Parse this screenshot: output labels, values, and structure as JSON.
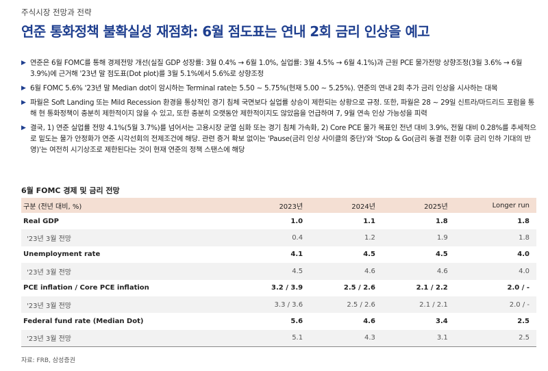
{
  "section_label": "주식시장 전망과 전략",
  "headline": "연준 통화정책 불확실성 재점화: 6월 점도표는 연내 2회 금리 인상을 예고",
  "bullets": [
    "연준은 6월 FOMC를 통해 경제전망 개선(실질 GDP 성장률: 3월 0.4% → 6월 1.0%, 실업률: 3월 4.5% → 6월 4.1%)과 근원 PCE 물가전망 상향조정(3월 3.6% → 6월 3.9%)에 근거해 '23년 말 점도표(Dot plot)를 3월 5.1%에서 5.6%로 상향조정",
    "6월 FOMC 5.6% '23년 말 Median dot이 암시하는 Terminal rate는 5.50 ~ 5.75%(현재 5.00 ~ 5.25%). 연준의 연내 2회 추가 금리 인상을 시사하는 대목",
    "파월은 Soft Landing 또는 Mild Recession 환경을 통상적인 경기 침체 국면보다 실업률 상승이 제한되는 상황으로 규정. 또한, 파월은 28 ~ 29일 신트라/마드리드 포럼을 통해 현 통화정책이 충분히 제한적이지 않을 수 있고, 또한 충분히 오랫동안 제한적이지도 않았음을 언급하며 7, 9월 연속 인상 가능성을 피력",
    "결국, 1) 연준 실업률 전망 4.1%(5월 3.7%)를 넘어서는 고용시장 균열 심화 또는 경기 침체 가속화, 2) Core PCE 물가 목표인 전년 대비 3.9%, 전월 대비 0.28%를 추세적으로 밑도는 물가 안정화가 연준 시각선회의 전제조건에 해당. 관련 증거 확보 없이는 'Pause(금리 인상 사이클의 중단)'와 'Stop & Go(금리 동결 전환 이후 금리 인하 기대의 반영)'는 여전히 시기상조로 제한된다는 것이 현재 연준의 정책 스탠스에 해당"
  ],
  "table": {
    "title": "6월 FOMC 경제 및 금리 전망",
    "headers": [
      "구분 (전년 대비, %)",
      "2023년",
      "2024년",
      "2025년",
      "Longer run"
    ],
    "rows": [
      {
        "kind": "main",
        "cells": [
          "Real GDP",
          "1.0",
          "1.1",
          "1.8",
          "1.8"
        ]
      },
      {
        "kind": "sub",
        "cells": [
          "'23년 3월 전망",
          "0.4",
          "1.2",
          "1.9",
          "1.8"
        ]
      },
      {
        "kind": "main",
        "cells": [
          "Unemployment rate",
          "4.1",
          "4.5",
          "4.5",
          "4.0"
        ]
      },
      {
        "kind": "sub",
        "cells": [
          "'23년 3월 전망",
          "4.5",
          "4.6",
          "4.6",
          "4.0"
        ]
      },
      {
        "kind": "main",
        "cells": [
          "PCE inflation / Core PCE inflation",
          "3.2 / 3.9",
          "2.5 / 2.6",
          "2.1 / 2.2",
          "2.0 / -"
        ]
      },
      {
        "kind": "sub",
        "cells": [
          "'23년 3월 전망",
          "3.3 / 3.6",
          "2.5 / 2.6",
          "2.1 / 2.1",
          "2.0 / -"
        ]
      },
      {
        "kind": "main",
        "cells": [
          "Federal fund rate (Median Dot)",
          "5.6",
          "4.6",
          "3.4",
          "2.5"
        ]
      },
      {
        "kind": "sub",
        "cells": [
          "'23년 3월 전망",
          "5.1",
          "4.3",
          "3.1",
          "2.5"
        ]
      }
    ]
  },
  "source": "자료: FRB, 삼성증권",
  "colors": {
    "headline": "#1f3f8f",
    "table_header_bg": "#f4dfd3",
    "sub_row_bg": "#f2f2f2"
  },
  "icons": {
    "bullet": "triangle-right-icon"
  }
}
